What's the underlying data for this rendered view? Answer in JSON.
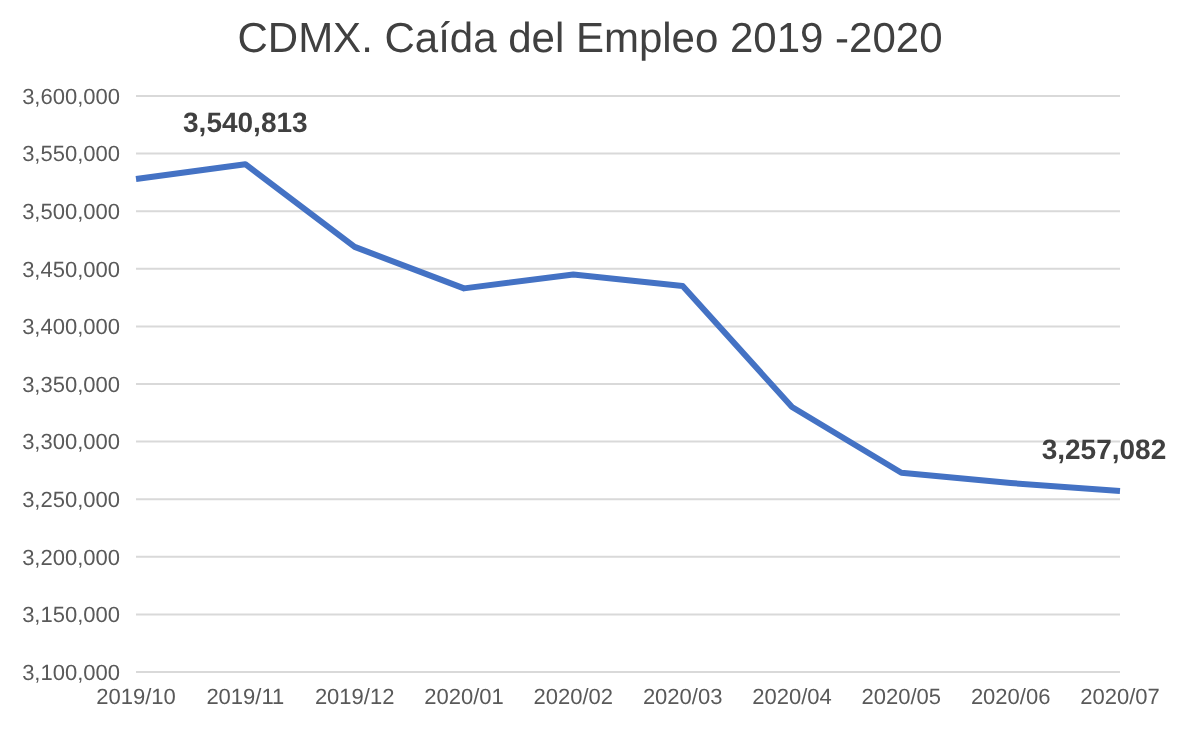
{
  "chart_data": {
    "type": "line",
    "title": "CDMX. Caída del Empleo 2019 -2020",
    "categories": [
      "2019/10",
      "2019/11",
      "2019/12",
      "2020/01",
      "2020/02",
      "2020/03",
      "2020/04",
      "2020/05",
      "2020/06",
      "2020/07"
    ],
    "series": [
      {
        "color": "#4472c4",
        "values": [
          3528000,
          3540813,
          3469000,
          3433000,
          3445000,
          3435000,
          3330000,
          3273000,
          3264000,
          3257082
        ],
        "value_labels": [
          null,
          "3,540,813",
          null,
          null,
          null,
          null,
          null,
          null,
          null,
          "3,257,082"
        ]
      }
    ],
    "ylim": [
      3100000,
      3600000
    ],
    "yticks": [
      {
        "value": 3100000,
        "label": "3,100,000"
      },
      {
        "value": 3150000,
        "label": "3,150,000"
      },
      {
        "value": 3200000,
        "label": "3,200,000"
      },
      {
        "value": 3250000,
        "label": "3,250,000"
      },
      {
        "value": 3300000,
        "label": "3,300,000"
      },
      {
        "value": 3350000,
        "label": "3,350,000"
      },
      {
        "value": 3400000,
        "label": "3,400,000"
      },
      {
        "value": 3450000,
        "label": "3,450,000"
      },
      {
        "value": 3500000,
        "label": "3,500,000"
      },
      {
        "value": 3550000,
        "label": "3,550,000"
      },
      {
        "value": 3600000,
        "label": "3,600,000"
      }
    ],
    "grid": "y",
    "marker": "none",
    "line_style": "solid"
  }
}
